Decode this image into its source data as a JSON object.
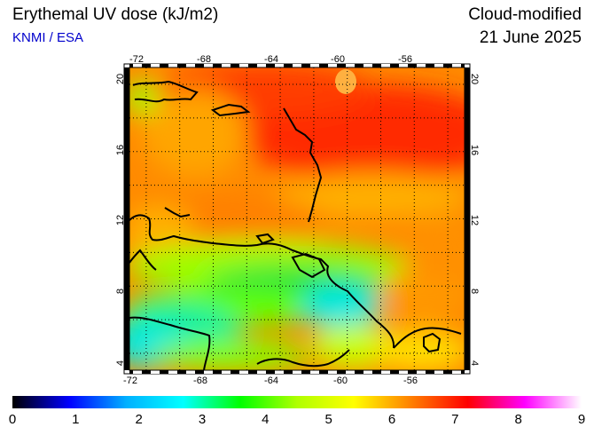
{
  "header": {
    "title": "Erythemal UV dose (kJ/m2)",
    "credit": "KNMI / ESA",
    "product": "Cloud-modified",
    "date": "21 June 2025"
  },
  "map": {
    "region": "Caribbean",
    "lon_range": [
      -73,
      -53
    ],
    "lat_range": [
      3,
      21
    ],
    "lon_ticks": [
      "-72",
      "-68",
      "-64",
      "-60",
      "-56"
    ],
    "lat_ticks": [
      "4",
      "8",
      "12",
      "16",
      "20"
    ],
    "grid": "dotted 2-degree graticule",
    "coastlines": true
  },
  "colorbar": {
    "min": 0,
    "max": 9,
    "labels": [
      "0",
      "1",
      "2",
      "3",
      "4",
      "5",
      "6",
      "7",
      "8",
      "9"
    ],
    "colors": [
      "#000000",
      "#0000ff",
      "#00b0ff",
      "#00ffff",
      "#00ff00",
      "#b0ff00",
      "#ffff00",
      "#ff8000",
      "#ff0000",
      "#ff00ff",
      "#ffffff"
    ]
  }
}
